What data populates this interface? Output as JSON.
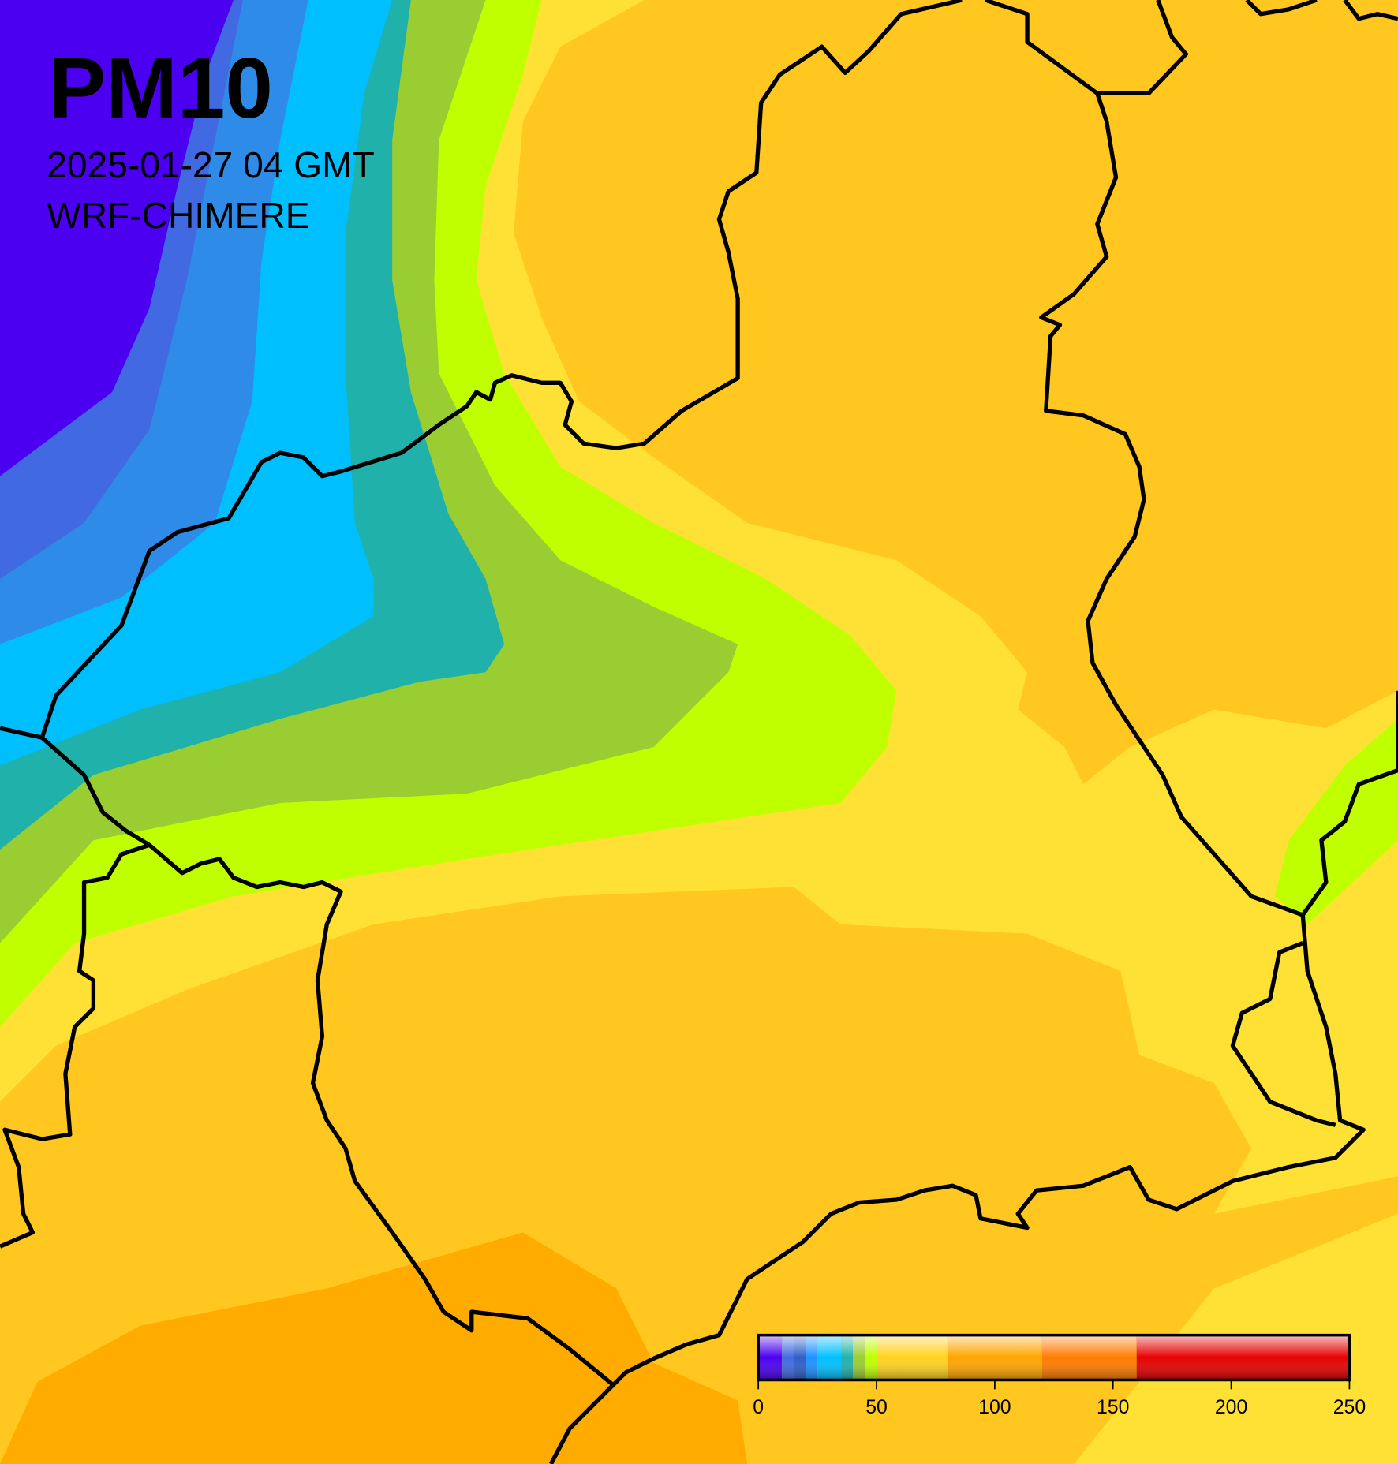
{
  "header": {
    "title": "PM10",
    "date": "2025-01-27 04 GMT",
    "model": "WRF-CHIMERE"
  },
  "colorbar": {
    "lim": [
      0,
      250
    ],
    "ticks": [
      0,
      50,
      100,
      150,
      200,
      250
    ],
    "bins": [
      0,
      10,
      15,
      20,
      25,
      35,
      40,
      45,
      50,
      80,
      120,
      160,
      250
    ],
    "colors": [
      "#4b00f0",
      "#4169e1",
      "#2e5fc8",
      "#1e90ff",
      "#00bfff",
      "#20b2aa",
      "#9acd32",
      "#bfff00",
      "#ffd21e",
      "#ffa500",
      "#ff7b00",
      "#e60000"
    ]
  }
}
